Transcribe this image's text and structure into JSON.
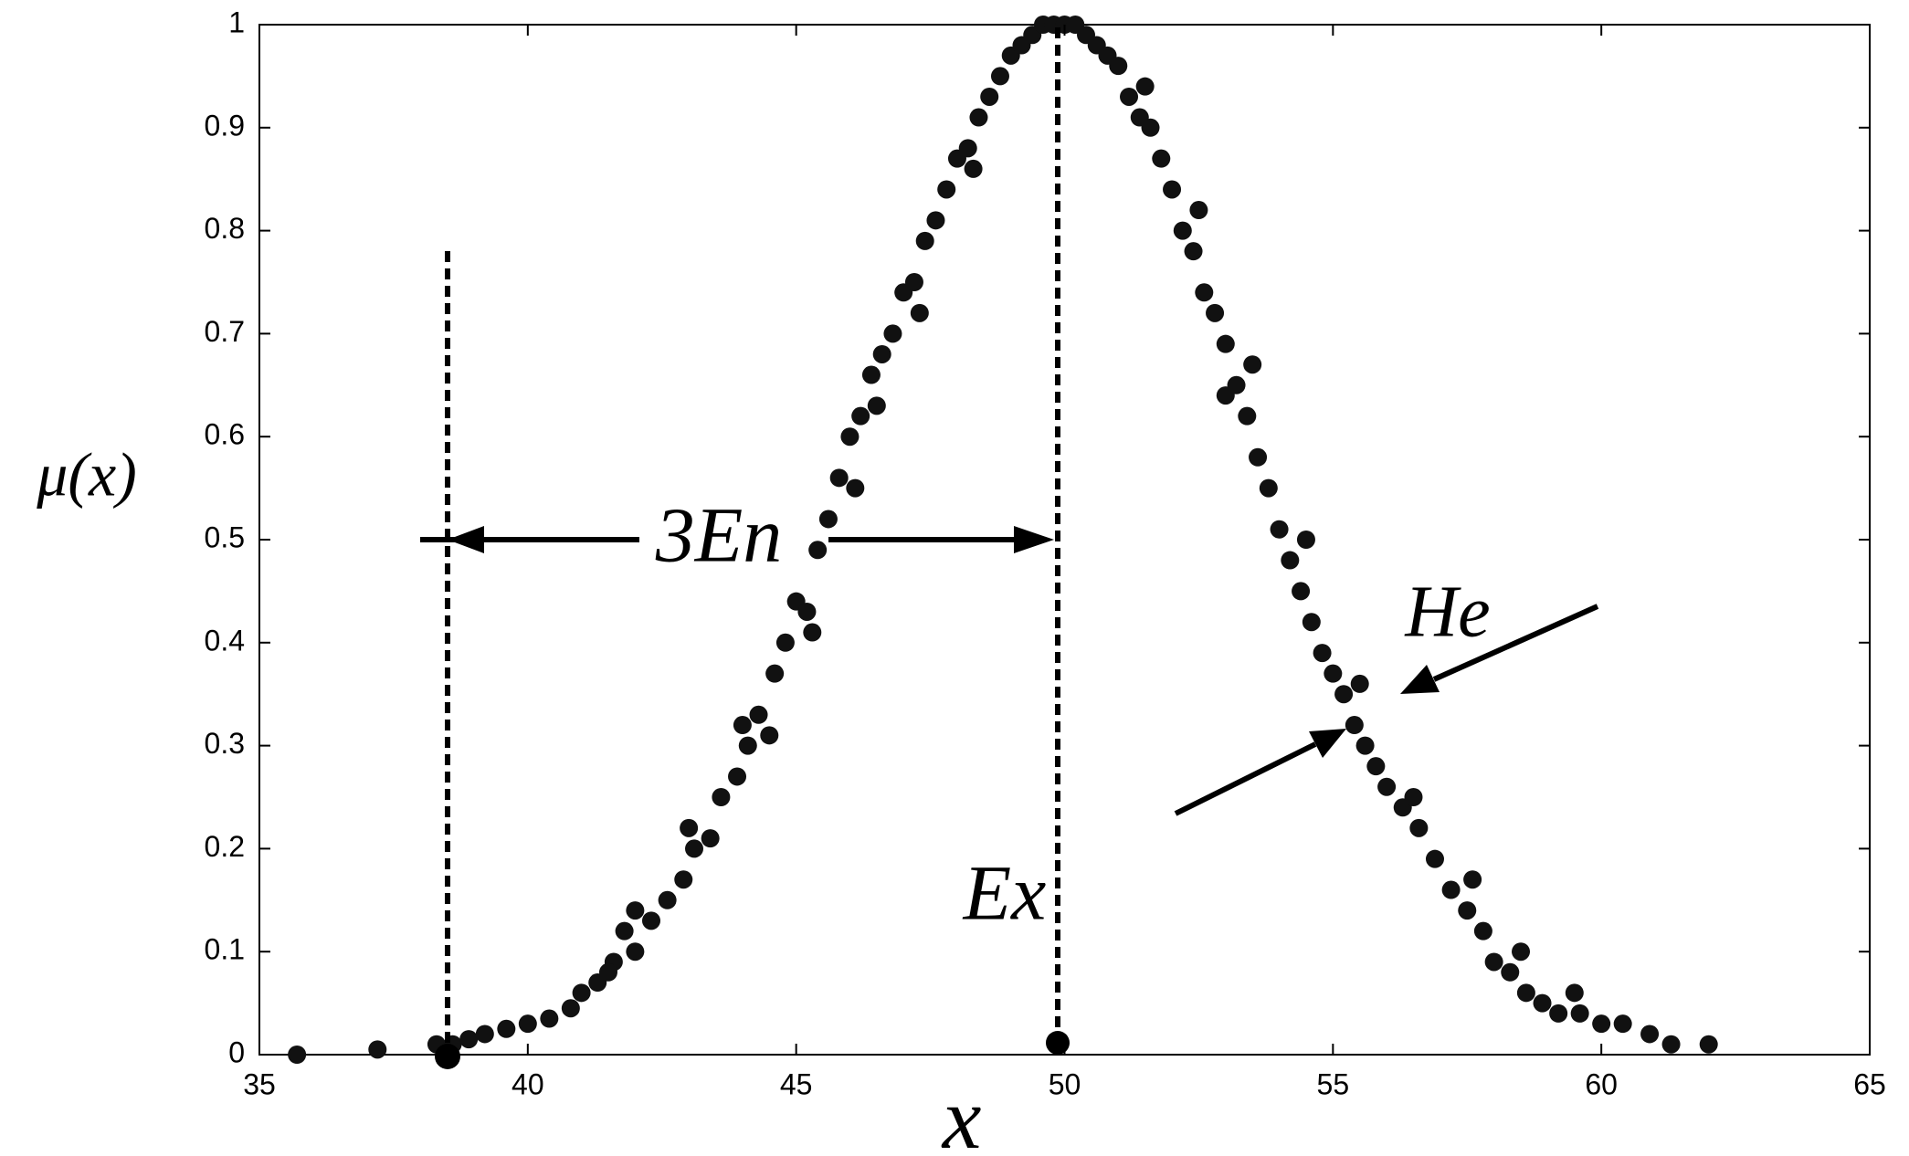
{
  "chart_data": {
    "type": "scatter",
    "color": "#111111",
    "x_label": "x",
    "y_label": "μ(x)",
    "annotations": [
      {
        "text": "3En"
      },
      {
        "text": "Ex"
      },
      {
        "text": "He"
      }
    ],
    "xlim": [
      35,
      65
    ],
    "xticks": [
      35,
      40,
      45,
      50,
      55,
      60,
      65
    ],
    "ylim": [
      0,
      1
    ],
    "yticks": [
      0,
      0.1,
      0.2,
      0.3,
      0.4,
      0.5,
      0.6,
      0.7,
      0.8,
      0.9,
      1
    ],
    "x": [
      35.7,
      37.2,
      38.3,
      38.6,
      38.9,
      39.2,
      39.6,
      40.0,
      40.4,
      40.8,
      41.0,
      41.3,
      41.6,
      41.8,
      42.0,
      42.3,
      42.6,
      42.9,
      43.1,
      43.4,
      43.6,
      43.9,
      44.1,
      44.3,
      44.6,
      44.8,
      45.0,
      45.2,
      45.4,
      45.6,
      45.8,
      46.0,
      46.2,
      46.4,
      46.6,
      46.8,
      47.0,
      47.2,
      47.4,
      47.6,
      47.8,
      48.0,
      48.2,
      48.4,
      48.6,
      48.8,
      49.0,
      49.2,
      49.4,
      49.6,
      49.8,
      50.0,
      50.2,
      50.4,
      50.6,
      50.8,
      51.0,
      51.2,
      51.4,
      51.6,
      51.8,
      52.0,
      52.2,
      52.4,
      52.6,
      52.8,
      53.0,
      53.2,
      53.4,
      53.6,
      53.8,
      54.0,
      54.2,
      54.4,
      54.6,
      54.8,
      55.0,
      55.2,
      55.4,
      55.6,
      55.8,
      56.0,
      56.3,
      56.6,
      56.9,
      57.2,
      57.5,
      57.8,
      58.0,
      58.3,
      58.6,
      58.9,
      59.2,
      59.6,
      60.0,
      60.4,
      60.9,
      61.3,
      62.0,
      44.5,
      45.3,
      46.5,
      47.3,
      48.3,
      51.5,
      52.5,
      53.5,
      54.5,
      55.5,
      56.5,
      57.6,
      58.5,
      59.5,
      43.0,
      42.0,
      41.5,
      44.0,
      46.1,
      53.0
    ],
    "values": [
      0.0,
      0.005,
      0.01,
      0.01,
      0.015,
      0.02,
      0.025,
      0.03,
      0.035,
      0.045,
      0.06,
      0.07,
      0.09,
      0.12,
      0.1,
      0.13,
      0.15,
      0.17,
      0.2,
      0.21,
      0.25,
      0.27,
      0.3,
      0.33,
      0.37,
      0.4,
      0.44,
      0.43,
      0.49,
      0.52,
      0.56,
      0.6,
      0.62,
      0.66,
      0.68,
      0.7,
      0.74,
      0.75,
      0.79,
      0.81,
      0.84,
      0.87,
      0.88,
      0.91,
      0.93,
      0.95,
      0.97,
      0.98,
      0.99,
      1.0,
      1.0,
      1.0,
      1.0,
      0.99,
      0.98,
      0.97,
      0.96,
      0.93,
      0.91,
      0.9,
      0.87,
      0.84,
      0.8,
      0.78,
      0.74,
      0.72,
      0.69,
      0.65,
      0.62,
      0.58,
      0.55,
      0.51,
      0.48,
      0.45,
      0.42,
      0.39,
      0.37,
      0.35,
      0.32,
      0.3,
      0.28,
      0.26,
      0.24,
      0.22,
      0.19,
      0.16,
      0.14,
      0.12,
      0.09,
      0.08,
      0.06,
      0.05,
      0.04,
      0.04,
      0.03,
      0.03,
      0.02,
      0.01,
      0.01,
      0.31,
      0.41,
      0.63,
      0.72,
      0.86,
      0.94,
      0.82,
      0.67,
      0.5,
      0.36,
      0.25,
      0.17,
      0.1,
      0.06,
      0.22,
      0.14,
      0.08,
      0.32,
      0.55,
      0.64
    ]
  }
}
